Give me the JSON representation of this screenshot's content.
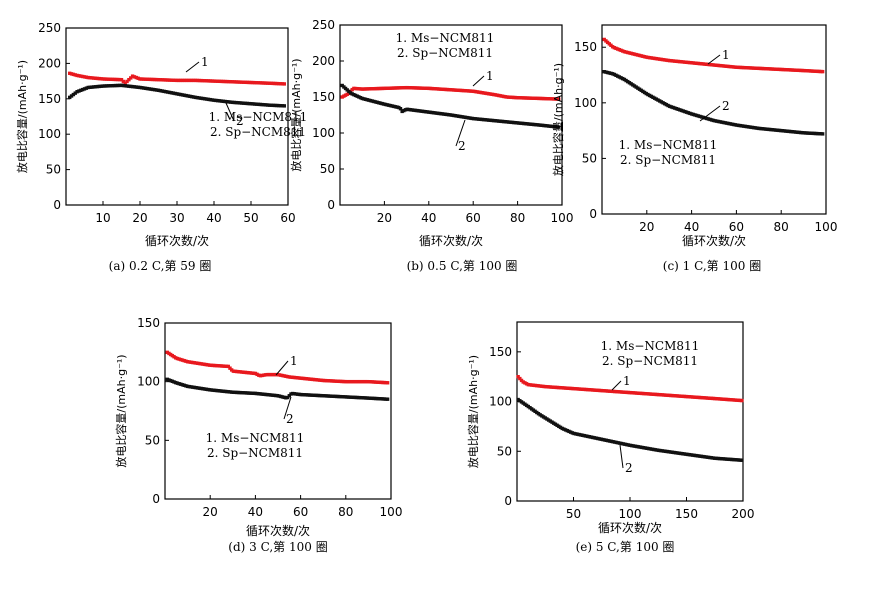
{
  "colors": {
    "series1": "#e8191e",
    "series2": "#111111"
  },
  "chart_data": [
    {
      "type": "scatter",
      "caption": "(a) 0.2 C,第 59 圈",
      "xlabel": "循环次数/次",
      "ylabel": "放电比容量/(mAh·g⁻¹)",
      "xlim": [
        0,
        60
      ],
      "ylim": [
        0,
        250
      ],
      "xticks": [
        10,
        20,
        30,
        40,
        50,
        60
      ],
      "yticks": [
        0,
        50,
        100,
        150,
        200,
        250
      ],
      "legend": [
        "1. Ms−NCM811",
        "2. Sp−NCM811"
      ],
      "annotations": [
        {
          "text": "1",
          "series": 0
        },
        {
          "text": "2",
          "series": 1
        }
      ],
      "series": [
        {
          "name": "Ms−NCM811",
          "points": [
            [
              1,
              186
            ],
            [
              3,
              183
            ],
            [
              6,
              180
            ],
            [
              10,
              178
            ],
            [
              15,
              177
            ],
            [
              16,
              172
            ],
            [
              18,
              182
            ],
            [
              20,
              178
            ],
            [
              25,
              177
            ],
            [
              30,
              176
            ],
            [
              35,
              176
            ],
            [
              40,
              175
            ],
            [
              45,
              174
            ],
            [
              50,
              173
            ],
            [
              55,
              172
            ],
            [
              59,
              171
            ]
          ]
        },
        {
          "name": "Sp−NCM811",
          "points": [
            [
              1,
              152
            ],
            [
              3,
              160
            ],
            [
              6,
              166
            ],
            [
              10,
              168
            ],
            [
              15,
              169
            ],
            [
              20,
              166
            ],
            [
              25,
              162
            ],
            [
              30,
              157
            ],
            [
              35,
              152
            ],
            [
              40,
              148
            ],
            [
              45,
              145
            ],
            [
              50,
              143
            ],
            [
              55,
              141
            ],
            [
              59,
              140
            ]
          ]
        }
      ]
    },
    {
      "type": "scatter",
      "caption": "(b) 0.5 C,第 100 圈",
      "xlabel": "循环次数/次",
      "ylabel": "放电比容量/(mAh·g⁻¹)",
      "xlim": [
        0,
        100
      ],
      "ylim": [
        0,
        250
      ],
      "xticks": [
        20,
        40,
        60,
        80,
        100
      ],
      "yticks": [
        0,
        50,
        100,
        150,
        200,
        250
      ],
      "legend": [
        "1. Ms−NCM811",
        "2. Sp−NCM811"
      ],
      "annotations": [
        {
          "text": "1",
          "series": 0
        },
        {
          "text": "2",
          "series": 1
        }
      ],
      "series": [
        {
          "name": "Ms−NCM811",
          "points": [
            [
              1,
              150
            ],
            [
              4,
              155
            ],
            [
              6,
              162
            ],
            [
              10,
              161
            ],
            [
              20,
              162
            ],
            [
              30,
              163
            ],
            [
              40,
              162
            ],
            [
              50,
              160
            ],
            [
              60,
              158
            ],
            [
              70,
              153
            ],
            [
              75,
              150
            ],
            [
              80,
              149
            ],
            [
              90,
              148
            ],
            [
              99,
              147
            ]
          ]
        },
        {
          "name": "Sp−NCM811",
          "points": [
            [
              1,
              166
            ],
            [
              5,
              155
            ],
            [
              10,
              148
            ],
            [
              20,
              140
            ],
            [
              27,
              135
            ],
            [
              28,
              130
            ],
            [
              30,
              133
            ],
            [
              35,
              131
            ],
            [
              40,
              129
            ],
            [
              50,
              125
            ],
            [
              60,
              120
            ],
            [
              70,
              117
            ],
            [
              80,
              114
            ],
            [
              90,
              111
            ],
            [
              99,
              108
            ]
          ]
        }
      ]
    },
    {
      "type": "scatter",
      "caption": "(c) 1 C,第 100 圈",
      "xlabel": "循环次数/次",
      "ylabel": "放电比容量/(mAh·g⁻¹)",
      "xlim": [
        0,
        100
      ],
      "ylim": [
        0,
        170
      ],
      "xticks": [
        20,
        40,
        60,
        80,
        100
      ],
      "yticks": [
        0,
        50,
        100,
        150
      ],
      "legend": [
        "1. Ms−NCM811",
        "2. Sp−NCM811"
      ],
      "annotations": [
        {
          "text": "1",
          "series": 0
        },
        {
          "text": "2",
          "series": 1
        }
      ],
      "series": [
        {
          "name": "Ms−NCM811",
          "points": [
            [
              1,
              157
            ],
            [
              5,
              150
            ],
            [
              10,
              146
            ],
            [
              20,
              141
            ],
            [
              30,
              138
            ],
            [
              40,
              136
            ],
            [
              50,
              134
            ],
            [
              60,
              132
            ],
            [
              70,
              131
            ],
            [
              80,
              130
            ],
            [
              90,
              129
            ],
            [
              99,
              128
            ]
          ]
        },
        {
          "name": "Sp−NCM811",
          "points": [
            [
              1,
              128
            ],
            [
              5,
              126
            ],
            [
              10,
              121
            ],
            [
              20,
              108
            ],
            [
              30,
              97
            ],
            [
              40,
              90
            ],
            [
              50,
              84
            ],
            [
              60,
              80
            ],
            [
              70,
              77
            ],
            [
              80,
              75
            ],
            [
              90,
              73
            ],
            [
              99,
              72
            ]
          ]
        }
      ]
    },
    {
      "type": "scatter",
      "caption": "(d) 3 C,第 100 圈",
      "xlabel": "循环次数/次",
      "ylabel": "放电比容量/(mAh·g⁻¹)",
      "xlim": [
        0,
        100
      ],
      "ylim": [
        0,
        150
      ],
      "xticks": [
        20,
        40,
        60,
        80,
        100
      ],
      "yticks": [
        0,
        50,
        100,
        150
      ],
      "legend": [
        "1. Ms−NCM811",
        "2. Sp−NCM811"
      ],
      "annotations": [
        {
          "text": "1",
          "series": 0
        },
        {
          "text": "2",
          "series": 1
        }
      ],
      "series": [
        {
          "name": "Ms−NCM811",
          "points": [
            [
              1,
              125
            ],
            [
              5,
              120
            ],
            [
              10,
              117
            ],
            [
              20,
              114
            ],
            [
              28,
              113
            ],
            [
              30,
              109
            ],
            [
              40,
              107
            ],
            [
              42,
              105
            ],
            [
              45,
              106
            ],
            [
              50,
              106
            ],
            [
              55,
              104
            ],
            [
              60,
              103
            ],
            [
              70,
              101
            ],
            [
              80,
              100
            ],
            [
              90,
              100
            ],
            [
              99,
              99
            ]
          ]
        },
        {
          "name": "Sp−NCM811",
          "points": [
            [
              1,
              102
            ],
            [
              5,
              99
            ],
            [
              10,
              96
            ],
            [
              20,
              93
            ],
            [
              30,
              91
            ],
            [
              40,
              90
            ],
            [
              50,
              88
            ],
            [
              54,
              86
            ],
            [
              56,
              90
            ],
            [
              60,
              89
            ],
            [
              70,
              88
            ],
            [
              80,
              87
            ],
            [
              90,
              86
            ],
            [
              99,
              85
            ]
          ]
        }
      ]
    },
    {
      "type": "scatter",
      "caption": "(e) 5 C,第 100 圈",
      "xlabel": "循环次数/次",
      "ylabel": "放电比容量/(mAh·g⁻¹)",
      "xlim": [
        0,
        200
      ],
      "ylim": [
        0,
        180
      ],
      "xticks": [
        50,
        100,
        150,
        200
      ],
      "yticks": [
        0,
        50,
        100,
        150
      ],
      "legend": [
        "1. Ms−NCM811",
        "2. Sp−NCM811"
      ],
      "annotations": [
        {
          "text": "1",
          "series": 0
        },
        {
          "text": "2",
          "series": 1
        }
      ],
      "series": [
        {
          "name": "Ms−NCM811",
          "points": [
            [
              1,
              125
            ],
            [
              5,
              120
            ],
            [
              10,
              117
            ],
            [
              25,
              115
            ],
            [
              50,
              113
            ],
            [
              75,
              111
            ],
            [
              100,
              109
            ],
            [
              125,
              107
            ],
            [
              150,
              105
            ],
            [
              175,
              103
            ],
            [
              199,
              101
            ]
          ]
        },
        {
          "name": "Sp−NCM811",
          "points": [
            [
              1,
              102
            ],
            [
              10,
              95
            ],
            [
              20,
              87
            ],
            [
              30,
              80
            ],
            [
              40,
              73
            ],
            [
              50,
              68
            ],
            [
              75,
              62
            ],
            [
              100,
              56
            ],
            [
              125,
              51
            ],
            [
              150,
              47
            ],
            [
              175,
              43
            ],
            [
              199,
              41
            ]
          ]
        }
      ]
    }
  ]
}
